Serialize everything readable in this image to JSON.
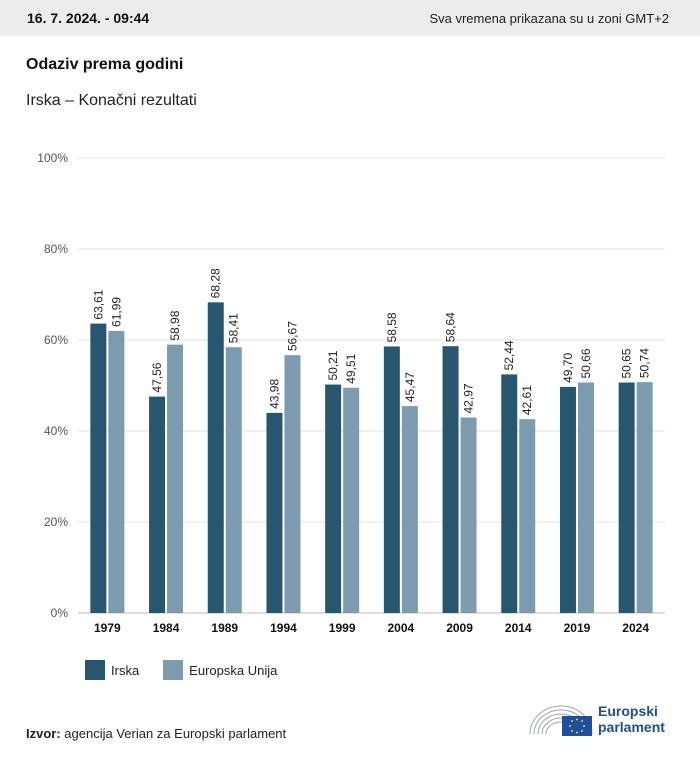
{
  "header": {
    "datetime": "16. 7. 2024. - 09:44",
    "timezone_note": "Sva vremena prikazana su u zoni GMT+2"
  },
  "title": "Odaziv prema godini",
  "subtitle": "Irska – Konačni rezultati",
  "legend": [
    "Irska",
    "Europska Unija"
  ],
  "source": {
    "label": "Izvor:",
    "text": "agencija Verian za Europski parlament"
  },
  "logo": {
    "line1": "Europski",
    "line2": "parlament"
  },
  "colors": {
    "irska": "#29566f",
    "eu": "#7d9bae",
    "grid": "#e3e3e3"
  },
  "chart_data": {
    "type": "bar",
    "categories": [
      "1979",
      "1984",
      "1989",
      "1994",
      "1999",
      "2004",
      "2009",
      "2014",
      "2019",
      "2024"
    ],
    "series": [
      {
        "name": "Irska",
        "values": [
          63.61,
          47.56,
          68.28,
          43.98,
          50.21,
          58.58,
          58.64,
          52.44,
          49.7,
          50.65
        ],
        "labels": [
          "63,61",
          "47,56",
          "68,28",
          "43,98",
          "50,21",
          "58,58",
          "58,64",
          "52,44",
          "49,70",
          "50,65"
        ]
      },
      {
        "name": "Europska Unija",
        "values": [
          61.99,
          58.98,
          58.41,
          56.67,
          49.51,
          45.47,
          42.97,
          42.61,
          50.66,
          50.74
        ],
        "labels": [
          "61,99",
          "58,98",
          "58,41",
          "56,67",
          "49,51",
          "45,47",
          "42,97",
          "42,61",
          "50,66",
          "50,74"
        ]
      }
    ],
    "ylim": [
      0,
      100
    ],
    "yticks": [
      "0%",
      "20%",
      "40%",
      "60%",
      "80%",
      "100%"
    ],
    "grid": true,
    "legend_position": "bottom-left"
  }
}
